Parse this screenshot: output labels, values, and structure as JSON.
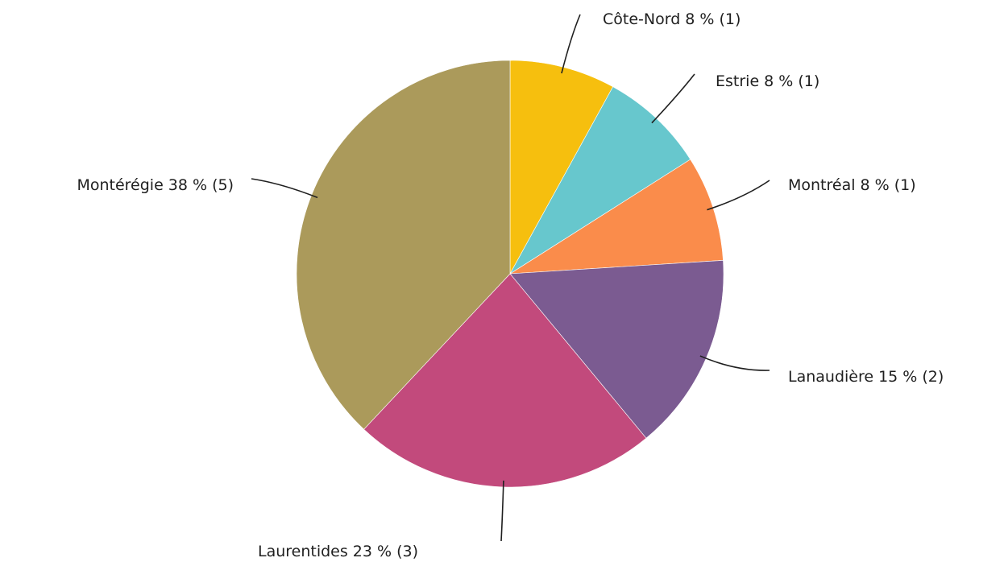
{
  "chart_data": {
    "type": "pie",
    "categories": [
      "Côte-Nord",
      "Estrie",
      "Montréal",
      "Lanaudière",
      "Laurentides",
      "Montérégie"
    ],
    "values": [
      8,
      8,
      8,
      15,
      23,
      38
    ],
    "value_labels": [
      "8 % (1)",
      "8 % (1)",
      "8 % (1)",
      "15 % (2)",
      "23 % (3)",
      "38 % (5)"
    ],
    "colors": [
      "#f6bf0e",
      "#67c7cd",
      "#fa8c4b",
      "#7b5b91",
      "#c24a7c",
      "#ab9a5b"
    ]
  }
}
